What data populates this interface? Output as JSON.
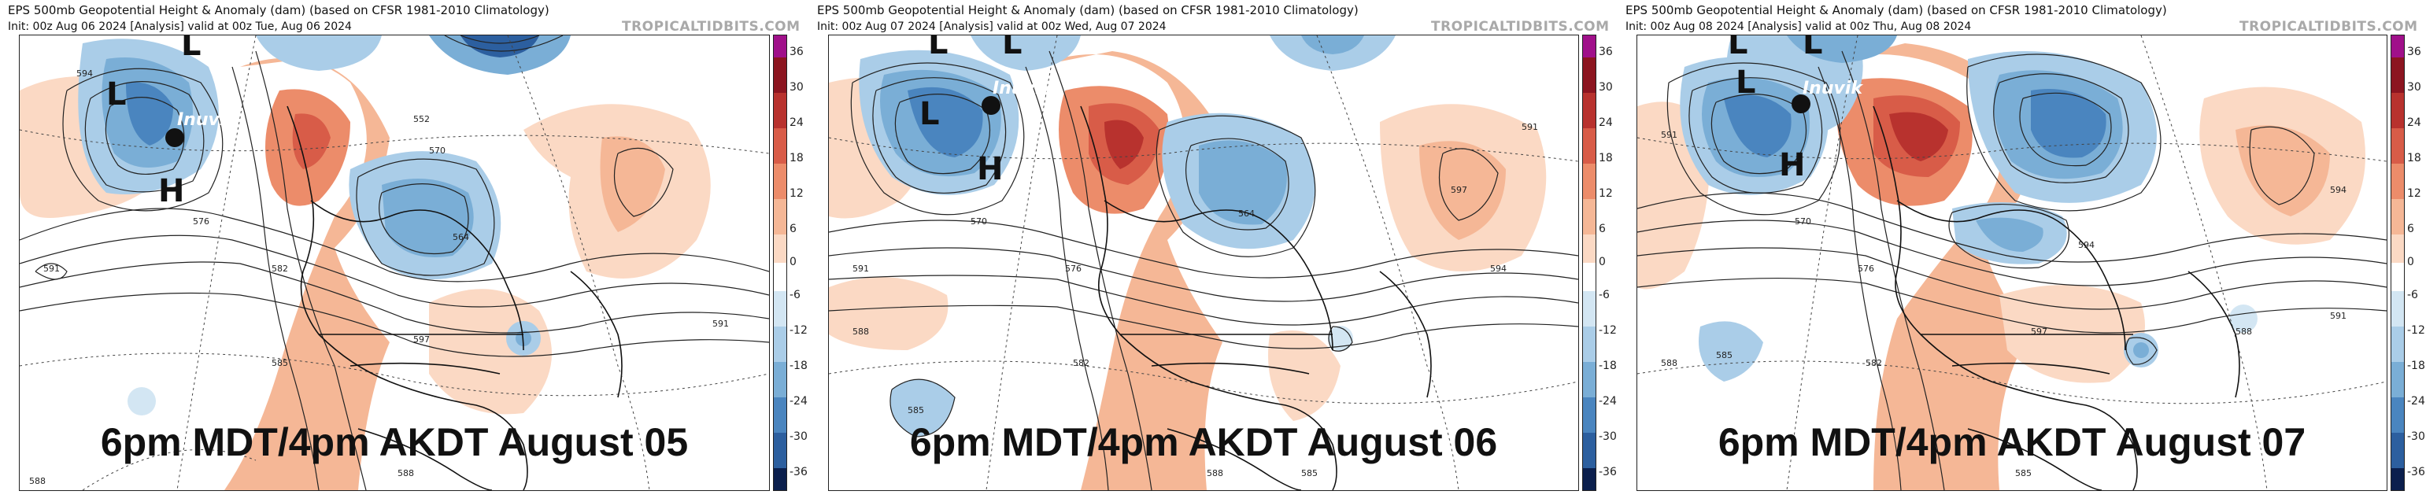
{
  "colors": {
    "scale": [
      "#0b1f4d",
      "#1b3f7a",
      "#2c5f9f",
      "#4a85bf",
      "#7aaed6",
      "#aacde8",
      "#d3e6f3",
      "#ffffff",
      "#fbd9c4",
      "#f5b796",
      "#ec8c6a",
      "#d85c48",
      "#b8322e",
      "#8c1520",
      "#a0108a"
    ],
    "accent_warm": "#e8835d",
    "accent_cool": "#4a85bf"
  },
  "colorbar": {
    "ticks": [
      "36",
      "30",
      "24",
      "18",
      "12",
      "6",
      "0",
      "-6",
      "-12",
      "-18",
      "-24",
      "-30",
      "-36"
    ]
  },
  "panels": [
    {
      "title": "EPS 500mb Geopotential Height & Anomaly (dam) (based on CFSR 1981-2010 Climatology)",
      "init": "Init: 00z Aug 06 2024   [Analysis]   valid at 00z Tue, Aug 06 2024",
      "brand": "TROPICALTIDBITS.COM",
      "caption": "6pm MDT/4pm AKDT August 05",
      "place": "Inuvik",
      "highs": [
        "H"
      ],
      "lows": [
        "L",
        "L"
      ],
      "contour_labels": [
        "594",
        "591",
        "588",
        "585",
        "582",
        "576",
        "570",
        "552",
        "564",
        "597",
        "591",
        "588"
      ]
    },
    {
      "title": "EPS 500mb Geopotential Height & Anomaly (dam) (based on CFSR 1981-2010 Climatology)",
      "init": "Init: 00z Aug 07 2024   [Analysis]   valid at 00z Wed, Aug 07 2024",
      "brand": "TROPICALTIDBITS.COM",
      "caption": "6pm MDT/4pm AKDT August 06",
      "place": "Inuvik",
      "highs": [
        "H"
      ],
      "lows": [
        "L",
        "L",
        "L"
      ],
      "contour_labels": [
        "591",
        "588",
        "585",
        "582",
        "576",
        "570",
        "564",
        "594",
        "597",
        "591",
        "588",
        "585"
      ]
    },
    {
      "title": "EPS 500mb Geopotential Height & Anomaly (dam) (based on CFSR 1981-2010 Climatology)",
      "init": "Init: 00z Aug 08 2024   [Analysis]   valid at 00z Thu, Aug 08 2024",
      "brand": "TROPICALTIDBITS.COM",
      "caption": "6pm MDT/4pm AKDT August 07",
      "place": "Inuvik",
      "highs": [
        "H"
      ],
      "lows": [
        "L",
        "L",
        "L"
      ],
      "contour_labels": [
        "591",
        "588",
        "585",
        "582",
        "576",
        "570",
        "594",
        "597",
        "591",
        "588",
        "585",
        "594"
      ]
    }
  ]
}
